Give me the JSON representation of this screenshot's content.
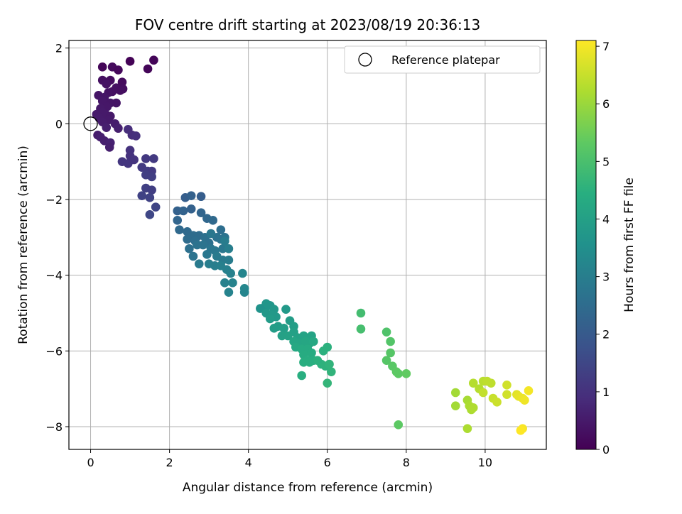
{
  "chart_data": {
    "type": "scatter",
    "title": "FOV centre drift starting at 2023/08/19 20:36:13",
    "xlabel": "Angular distance from reference (arcmin)",
    "ylabel": "Rotation from reference (arcmin)",
    "xlim": [
      -0.55,
      11.55
    ],
    "ylim": [
      -8.6,
      2.2
    ],
    "xticks": [
      0,
      2,
      4,
      6,
      8,
      10
    ],
    "yticks": [
      2,
      0,
      -2,
      -4,
      -6,
      -8
    ],
    "xtick_labels": [
      "0",
      "2",
      "4",
      "6",
      "8",
      "10"
    ],
    "ytick_labels": [
      "2",
      "0",
      "−2",
      "−4",
      "−6",
      "−8"
    ],
    "grid": true,
    "colormap": "viridis",
    "colorbar": {
      "label": "Hours from first FF file",
      "range": [
        0,
        7.1
      ],
      "ticks": [
        0,
        1,
        2,
        3,
        4,
        5,
        6,
        7
      ],
      "tick_labels": [
        "0",
        "1",
        "2",
        "3",
        "4",
        "5",
        "6",
        "7"
      ]
    },
    "legend": {
      "position": "top-right",
      "entries": [
        {
          "label": "Reference platepar",
          "marker": "open-circle"
        }
      ]
    },
    "reference_point": {
      "x": 0,
      "y": 0
    },
    "points": [
      [
        0.3,
        1.5,
        0.1
      ],
      [
        0.55,
        1.5,
        0.2
      ],
      [
        0.7,
        1.42,
        0.15
      ],
      [
        1.0,
        1.65,
        0.05
      ],
      [
        1.45,
        1.45,
        0.1
      ],
      [
        1.6,
        1.68,
        0.08
      ],
      [
        0.3,
        1.15,
        0.3
      ],
      [
        0.5,
        1.15,
        0.25
      ],
      [
        0.8,
        1.1,
        0.2
      ],
      [
        0.4,
        1.05,
        0.35
      ],
      [
        0.65,
        0.95,
        0.3
      ],
      [
        0.82,
        0.92,
        0.25
      ],
      [
        0.75,
        0.88,
        0.28
      ],
      [
        0.55,
        0.85,
        0.3
      ],
      [
        0.45,
        0.82,
        0.35
      ],
      [
        0.2,
        0.75,
        0.4
      ],
      [
        0.35,
        0.7,
        0.4
      ],
      [
        0.3,
        0.6,
        0.45
      ],
      [
        0.5,
        0.55,
        0.42
      ],
      [
        0.65,
        0.55,
        0.4
      ],
      [
        0.42,
        0.45,
        0.45
      ],
      [
        0.25,
        0.4,
        0.48
      ],
      [
        0.3,
        0.3,
        0.5
      ],
      [
        0.15,
        0.25,
        0.5
      ],
      [
        0.38,
        0.25,
        0.5
      ],
      [
        0.5,
        0.2,
        0.48
      ],
      [
        0.22,
        0.15,
        0.52
      ],
      [
        0.45,
        0.1,
        0.5
      ],
      [
        0.3,
        0.05,
        0.55
      ],
      [
        0.62,
        0.0,
        0.55
      ],
      [
        0.4,
        -0.1,
        0.6
      ],
      [
        0.18,
        -0.3,
        0.55
      ],
      [
        0.25,
        -0.35,
        0.6
      ],
      [
        0.35,
        -0.45,
        0.6
      ],
      [
        0.5,
        -0.5,
        0.65
      ],
      [
        0.48,
        -0.62,
        0.6
      ],
      [
        0.7,
        -0.12,
        0.6
      ],
      [
        0.95,
        -0.15,
        0.9
      ],
      [
        1.05,
        -0.3,
        0.9
      ],
      [
        1.15,
        -0.32,
        0.95
      ],
      [
        1.0,
        -0.7,
        1.0
      ],
      [
        1.0,
        -0.85,
        1.0
      ],
      [
        0.8,
        -1.0,
        1.1
      ],
      [
        0.95,
        -1.05,
        1.1
      ],
      [
        1.1,
        -0.95,
        1.05
      ],
      [
        1.4,
        -0.92,
        1.15
      ],
      [
        1.6,
        -0.92,
        1.2
      ],
      [
        1.3,
        -1.15,
        1.2
      ],
      [
        1.45,
        -1.25,
        1.25
      ],
      [
        1.55,
        -1.25,
        1.2
      ],
      [
        1.4,
        -1.35,
        1.3
      ],
      [
        1.55,
        -1.4,
        1.3
      ],
      [
        1.4,
        -1.7,
        1.35
      ],
      [
        1.55,
        -1.75,
        1.3
      ],
      [
        1.3,
        -1.9,
        1.4
      ],
      [
        1.5,
        -1.95,
        1.4
      ],
      [
        1.65,
        -2.2,
        1.45
      ],
      [
        1.5,
        -2.4,
        1.5
      ],
      [
        2.4,
        -1.95,
        2.1
      ],
      [
        2.55,
        -1.9,
        2.2
      ],
      [
        2.8,
        -1.92,
        2.1
      ],
      [
        2.2,
        -2.3,
        2.2
      ],
      [
        2.35,
        -2.3,
        2.25
      ],
      [
        2.55,
        -2.25,
        2.2
      ],
      [
        2.8,
        -2.35,
        2.3
      ],
      [
        2.95,
        -2.5,
        2.35
      ],
      [
        2.2,
        -2.55,
        2.3
      ],
      [
        2.25,
        -2.8,
        2.4
      ],
      [
        3.1,
        -2.55,
        2.4
      ],
      [
        2.45,
        -2.85,
        2.45
      ],
      [
        2.6,
        -2.95,
        2.5
      ],
      [
        2.75,
        -2.95,
        2.5
      ],
      [
        3.3,
        -2.8,
        2.55
      ],
      [
        2.45,
        -3.05,
        2.5
      ],
      [
        2.65,
        -3.1,
        2.55
      ],
      [
        2.9,
        -3.0,
        2.6
      ],
      [
        3.0,
        -3.15,
        2.6
      ],
      [
        3.2,
        -3.0,
        2.65
      ],
      [
        3.3,
        -3.05,
        2.7
      ],
      [
        3.4,
        -3.0,
        2.7
      ],
      [
        2.5,
        -3.3,
        2.6
      ],
      [
        2.7,
        -3.2,
        2.65
      ],
      [
        2.85,
        -3.2,
        2.7
      ],
      [
        3.05,
        -3.3,
        2.75
      ],
      [
        3.15,
        -3.35,
        2.8
      ],
      [
        3.35,
        -3.3,
        2.8
      ],
      [
        2.6,
        -3.5,
        2.7
      ],
      [
        2.95,
        -3.45,
        2.8
      ],
      [
        3.2,
        -3.5,
        2.9
      ],
      [
        3.35,
        -3.6,
        2.9
      ],
      [
        3.5,
        -3.6,
        2.95
      ],
      [
        2.75,
        -3.7,
        2.9
      ],
      [
        3.0,
        -3.7,
        3.0
      ],
      [
        3.15,
        -3.75,
        3.0
      ],
      [
        3.3,
        -3.75,
        3.05
      ],
      [
        3.45,
        -3.85,
        3.05
      ],
      [
        3.55,
        -3.95,
        3.1
      ],
      [
        3.4,
        -4.2,
        3.1
      ],
      [
        3.6,
        -4.2,
        3.15
      ],
      [
        3.5,
        -4.45,
        3.15
      ],
      [
        3.85,
        -3.95,
        3.2
      ],
      [
        3.9,
        -4.35,
        3.25
      ],
      [
        3.9,
        -4.45,
        3.2
      ],
      [
        3.5,
        -3.3,
        3.0
      ],
      [
        3.4,
        -3.1,
        2.95
      ],
      [
        3.05,
        -2.9,
        2.8
      ],
      [
        4.4,
        -4.85,
        3.65
      ],
      [
        4.45,
        -4.75,
        3.7
      ],
      [
        4.3,
        -4.88,
        3.6
      ],
      [
        4.55,
        -4.8,
        3.7
      ],
      [
        4.65,
        -4.9,
        3.75
      ],
      [
        4.45,
        -5.0,
        3.75
      ],
      [
        4.6,
        -5.05,
        3.8
      ],
      [
        4.7,
        -5.1,
        3.8
      ],
      [
        4.55,
        -5.15,
        3.85
      ],
      [
        4.95,
        -4.9,
        3.8
      ],
      [
        5.05,
        -5.2,
        3.9
      ],
      [
        4.75,
        -5.35,
        3.9
      ],
      [
        4.9,
        -5.4,
        3.95
      ],
      [
        5.15,
        -5.35,
        3.95
      ],
      [
        4.65,
        -5.4,
        3.9
      ],
      [
        5.15,
        -5.5,
        4.0
      ],
      [
        4.85,
        -5.6,
        4.0
      ],
      [
        5.0,
        -5.6,
        4.05
      ],
      [
        5.25,
        -5.65,
        4.05
      ],
      [
        5.4,
        -5.6,
        4.1
      ],
      [
        5.6,
        -5.6,
        4.1
      ],
      [
        5.15,
        -5.75,
        4.15
      ],
      [
        5.3,
        -5.8,
        4.15
      ],
      [
        5.45,
        -5.75,
        4.2
      ],
      [
        5.55,
        -5.8,
        4.2
      ],
      [
        5.65,
        -5.75,
        4.25
      ],
      [
        5.2,
        -5.9,
        4.25
      ],
      [
        5.35,
        -5.95,
        4.3
      ],
      [
        5.5,
        -5.95,
        4.3
      ],
      [
        5.6,
        -6.05,
        4.35
      ],
      [
        5.4,
        -6.1,
        4.35
      ],
      [
        5.5,
        -6.25,
        4.4
      ],
      [
        5.65,
        -6.25,
        4.4
      ],
      [
        5.4,
        -6.3,
        4.45
      ],
      [
        5.35,
        -6.65,
        4.45
      ],
      [
        5.9,
        -6.0,
        4.5
      ],
      [
        6.0,
        -5.9,
        4.5
      ],
      [
        5.85,
        -6.35,
        4.55
      ],
      [
        5.95,
        -6.4,
        4.55
      ],
      [
        6.05,
        -6.35,
        4.6
      ],
      [
        6.1,
        -6.55,
        4.6
      ],
      [
        6.0,
        -6.85,
        4.65
      ],
      [
        5.75,
        -6.25,
        4.5
      ],
      [
        5.55,
        -6.3,
        4.45
      ],
      [
        6.85,
        -5.0,
        4.9
      ],
      [
        6.85,
        -5.42,
        4.95
      ],
      [
        7.5,
        -5.5,
        5.1
      ],
      [
        7.6,
        -5.75,
        5.15
      ],
      [
        7.6,
        -6.05,
        5.2
      ],
      [
        7.5,
        -6.25,
        5.2
      ],
      [
        7.65,
        -6.4,
        5.25
      ],
      [
        7.75,
        -6.55,
        5.3
      ],
      [
        7.8,
        -6.6,
        5.3
      ],
      [
        8.0,
        -6.6,
        5.35
      ],
      [
        7.8,
        -7.95,
        5.3
      ],
      [
        9.25,
        -7.1,
        6.1
      ],
      [
        9.25,
        -7.45,
        6.1
      ],
      [
        9.55,
        -7.3,
        6.15
      ],
      [
        9.6,
        -7.45,
        6.2
      ],
      [
        9.65,
        -7.55,
        6.2
      ],
      [
        9.7,
        -7.5,
        6.25
      ],
      [
        9.55,
        -8.05,
        6.2
      ],
      [
        9.7,
        -6.85,
        6.3
      ],
      [
        9.85,
        -7.0,
        6.3
      ],
      [
        9.95,
        -6.8,
        6.35
      ],
      [
        10.05,
        -6.8,
        6.4
      ],
      [
        10.15,
        -6.85,
        6.4
      ],
      [
        9.95,
        -7.1,
        6.45
      ],
      [
        10.2,
        -7.25,
        6.5
      ],
      [
        10.3,
        -7.35,
        6.55
      ],
      [
        10.55,
        -6.9,
        6.6
      ],
      [
        10.55,
        -7.15,
        6.6
      ],
      [
        10.8,
        -7.15,
        6.8
      ],
      [
        10.85,
        -7.2,
        6.85
      ],
      [
        10.95,
        -7.25,
        6.9
      ],
      [
        11.0,
        -7.3,
        6.95
      ],
      [
        11.1,
        -7.05,
        7.0
      ],
      [
        10.95,
        -8.05,
        7.05
      ],
      [
        10.9,
        -8.1,
        7.1
      ]
    ]
  }
}
